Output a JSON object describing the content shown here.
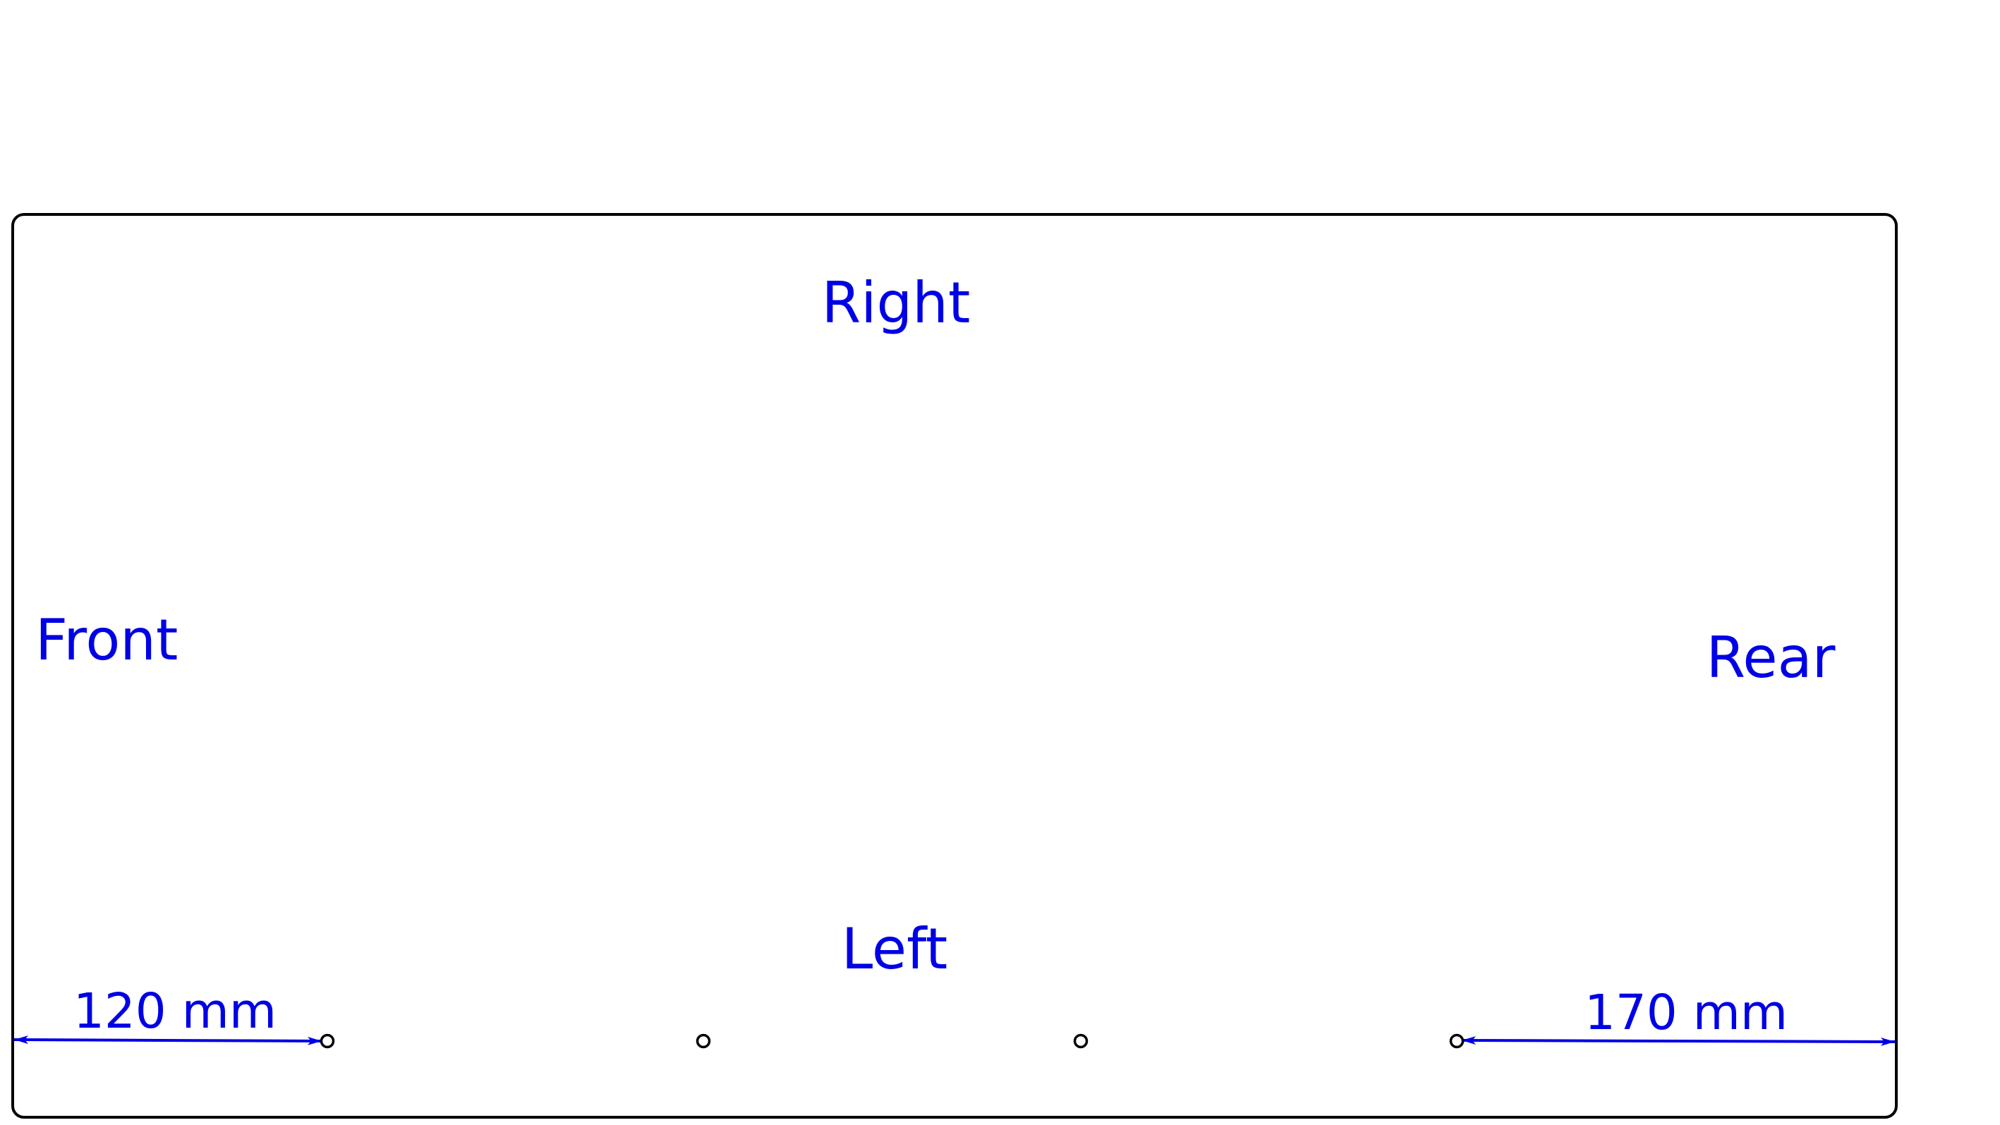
{
  "colors": {
    "annotation": "#0000e6",
    "outline": "#000000",
    "background": "#ffffff"
  },
  "labels": {
    "right": "Right",
    "left": "Left",
    "front": "Front",
    "rear": "Rear"
  },
  "dimensions": {
    "front_offset": "120 mm",
    "rear_offset": "170 mm"
  },
  "holes_count": 4
}
